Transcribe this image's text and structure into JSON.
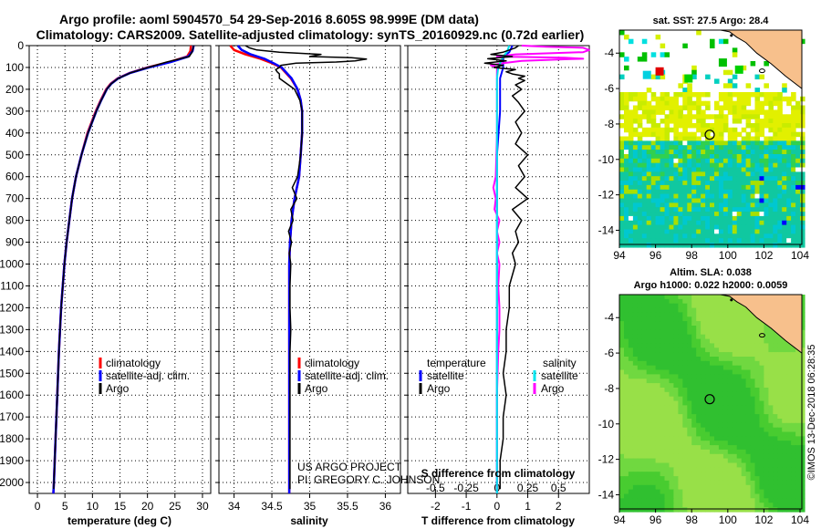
{
  "title": {
    "line1": "Argo profile: aoml 5904570_54 29-Sep-2016 8.605S 98.999E (DM data)",
    "line2": "Climatology: CARS2009. Satellite-adjusted climatology: synTS_20160929.nc (0.72d earlier)"
  },
  "colors": {
    "climatology": "#ff0000",
    "satellite": "#0000ff",
    "argo": "#000000",
    "t_diff_sat": "#0000ff",
    "s_diff_sat": "#00e5ee",
    "s_diff_argo": "#ff00ff",
    "land": "#f7c08c",
    "coast": "#000000"
  },
  "depth_axis": {
    "ylim": [
      2050,
      0
    ],
    "ticks": [
      0,
      100,
      200,
      300,
      400,
      500,
      600,
      700,
      800,
      900,
      1000,
      1100,
      1200,
      1300,
      1400,
      1500,
      1600,
      1700,
      1800,
      1900,
      2000
    ]
  },
  "chart_data": [
    {
      "id": "temperature",
      "type": "line",
      "xlabel": "temperature (deg C)",
      "xlim": [
        -1.5,
        31.5
      ],
      "xticks": [
        0,
        5,
        10,
        15,
        20,
        25,
        30
      ],
      "xtick_labels": [
        "0",
        "5",
        "10",
        "15",
        "20",
        "25",
        "30"
      ],
      "ylabel": "depth",
      "legend": [
        "climatology",
        "satellite-adj. clim.",
        "Argo"
      ],
      "series": [
        {
          "name": "climatology",
          "depth": [
            0,
            25,
            50,
            75,
            100,
            125,
            150,
            175,
            200,
            250,
            300,
            400,
            500,
            600,
            700,
            800,
            900,
            1000,
            1200,
            1400,
            1600,
            1800,
            2000,
            2050
          ],
          "values": [
            27.9,
            27.8,
            27.2,
            24.0,
            20.0,
            16.8,
            14.6,
            13.3,
            12.5,
            11.5,
            10.6,
            9.1,
            8.0,
            7.0,
            6.3,
            5.8,
            5.3,
            4.9,
            4.3,
            3.9,
            3.6,
            3.3,
            3.0,
            2.9
          ]
        },
        {
          "name": "satellite-adj. clim.",
          "depth": [
            0,
            25,
            50,
            75,
            100,
            125,
            150,
            175,
            200,
            250,
            300,
            400,
            500,
            600,
            700,
            800,
            900,
            1000,
            1200,
            1400,
            1600,
            1800,
            2000,
            2050
          ],
          "values": [
            28.4,
            28.2,
            27.4,
            24.2,
            20.2,
            16.9,
            14.7,
            13.4,
            12.6,
            11.6,
            10.7,
            9.2,
            8.0,
            7.0,
            6.3,
            5.8,
            5.3,
            4.9,
            4.3,
            3.9,
            3.6,
            3.3,
            3.0,
            2.9
          ]
        },
        {
          "name": "Argo",
          "depth": [
            0,
            10,
            30,
            50,
            60,
            75,
            100,
            125,
            150,
            175,
            200,
            250,
            300,
            400,
            500,
            600,
            700,
            800,
            900,
            1000,
            1200,
            1400,
            1600,
            1800,
            2000,
            2030
          ],
          "values": [
            28.4,
            28.3,
            28.1,
            27.6,
            26.0,
            23.5,
            20.1,
            16.9,
            14.7,
            13.4,
            12.6,
            11.6,
            10.7,
            9.2,
            8.0,
            7.0,
            6.3,
            5.8,
            5.3,
            4.9,
            4.3,
            3.9,
            3.6,
            3.3,
            3.0,
            2.95
          ]
        }
      ]
    },
    {
      "id": "salinity",
      "type": "line",
      "xlabel": "salinity",
      "xlim": [
        33.8,
        36.2
      ],
      "xticks": [
        34,
        34.5,
        35,
        35.5,
        36
      ],
      "xtick_labels": [
        "34",
        "34.5",
        "35",
        "35.5",
        "36"
      ],
      "legend": [
        "climatology",
        "satellite-adj. clim.",
        "Argo"
      ],
      "series": [
        {
          "name": "climatology",
          "depth": [
            0,
            20,
            40,
            60,
            80,
            100,
            150,
            200,
            250,
            300,
            400,
            500,
            600,
            700,
            800,
            900,
            1000,
            1200,
            1400,
            1600,
            1800,
            2000,
            2050
          ],
          "values": [
            33.95,
            34.0,
            34.15,
            34.35,
            34.5,
            34.62,
            34.75,
            34.84,
            34.88,
            34.9,
            34.9,
            34.88,
            34.86,
            34.8,
            34.76,
            34.74,
            34.73,
            34.73,
            34.73,
            34.73,
            34.73,
            34.73,
            34.73
          ]
        },
        {
          "name": "satellite-adj. clim.",
          "depth": [
            0,
            20,
            40,
            60,
            80,
            100,
            150,
            200,
            250,
            300,
            400,
            500,
            600,
            700,
            800,
            900,
            1000,
            1200,
            1400,
            1600,
            1800,
            2000,
            2050
          ],
          "values": [
            34.05,
            34.1,
            34.22,
            34.4,
            34.52,
            34.63,
            34.76,
            34.84,
            34.88,
            34.9,
            34.9,
            34.88,
            34.86,
            34.8,
            34.76,
            34.74,
            34.73,
            34.73,
            34.73,
            34.73,
            34.73,
            34.73,
            34.73
          ]
        },
        {
          "name": "Argo",
          "depth": [
            0,
            10,
            20,
            30,
            40,
            50,
            55,
            62,
            70,
            75,
            80,
            90,
            100,
            110,
            120,
            130,
            140,
            150,
            175,
            200,
            250,
            300,
            400,
            500,
            600,
            650,
            700,
            750,
            800,
            850,
            900,
            950,
            1000,
            1100,
            1200,
            1300,
            1400,
            1600,
            1800,
            2000,
            2030
          ],
          "values": [
            34.15,
            34.2,
            34.3,
            34.6,
            35.15,
            35.0,
            35.55,
            35.75,
            35.6,
            35.35,
            34.82,
            34.62,
            34.6,
            34.55,
            34.57,
            34.6,
            34.6,
            34.6,
            34.7,
            34.8,
            34.87,
            34.9,
            34.9,
            34.88,
            34.84,
            34.77,
            34.83,
            34.75,
            34.78,
            34.72,
            34.76,
            34.73,
            34.75,
            34.74,
            34.74,
            34.75,
            34.74,
            34.74,
            34.74,
            34.74,
            34.74
          ]
        }
      ]
    },
    {
      "id": "differences",
      "type": "line",
      "xlabel": "T difference from climatology",
      "xlabel_top": "S difference from climatology",
      "xlim": [
        -2.9,
        3.0
      ],
      "xticks": [
        -2,
        -1,
        0,
        1,
        2
      ],
      "xtick_labels": [
        "-2",
        "-1",
        "0",
        "1",
        "2"
      ],
      "top_scale": {
        "xlim": [
          -0.725,
          0.75
        ],
        "ticks": [
          -0.5,
          -0.25,
          0,
          0.25,
          0.5
        ],
        "tick_labels": [
          "-0.5",
          "-0.25",
          "0",
          "0.25",
          "0.5"
        ]
      },
      "legend_left_title": "temperature",
      "legend_right_title": "salinity",
      "legend_left": [
        "satellite",
        "Argo"
      ],
      "legend_right": [
        "satellite",
        "Argo"
      ],
      "series": [
        {
          "name": "T satellite",
          "scale": "T",
          "depth": [
            0,
            30,
            50,
            75,
            100,
            150,
            200,
            300,
            500,
            700,
            1000,
            1500,
            2000,
            2050
          ],
          "values": [
            0.5,
            0.4,
            0.2,
            0.2,
            0.2,
            0.1,
            0.1,
            0.1,
            0.0,
            0.0,
            0.0,
            0.0,
            0.0,
            0.0
          ]
        },
        {
          "name": "T Argo",
          "scale": "T",
          "depth": [
            0,
            10,
            30,
            40,
            50,
            60,
            70,
            80,
            90,
            100,
            110,
            120,
            130,
            140,
            150,
            160,
            180,
            200,
            230,
            260,
            300,
            350,
            400,
            450,
            500,
            550,
            600,
            650,
            700,
            750,
            800,
            850,
            900,
            950,
            1000,
            1100,
            1200,
            1300,
            1400,
            1500,
            1600,
            1700,
            1800,
            1900,
            2000,
            2030
          ],
          "values": [
            0.7,
            0.6,
            0.2,
            -0.2,
            0.5,
            -0.3,
            0.3,
            -0.4,
            0.2,
            -0.1,
            0.6,
            0.3,
            0.5,
            0.9,
            0.7,
            0.9,
            0.6,
            0.8,
            0.5,
            0.7,
            0.9,
            0.6,
            0.8,
            0.6,
            1.0,
            0.7,
            0.9,
            0.6,
            1.0,
            0.5,
            0.8,
            0.6,
            0.7,
            0.5,
            0.6,
            0.4,
            0.4,
            0.3,
            0.3,
            0.2,
            0.3,
            0.2,
            0.2,
            0.1,
            0.1,
            0.1
          ]
        },
        {
          "name": "S satellite",
          "scale": "S",
          "depth": [
            0,
            30,
            50,
            75,
            100,
            150,
            200,
            300,
            500,
            1000,
            1500,
            2000,
            2050
          ],
          "values": [
            0.1,
            0.08,
            0.05,
            0.03,
            0.01,
            0.0,
            0.0,
            0.0,
            0.0,
            0.0,
            0.0,
            0.0,
            0.0
          ]
        },
        {
          "name": "S Argo",
          "scale": "S",
          "depth": [
            0,
            5,
            10,
            20,
            30,
            40,
            50,
            55,
            60,
            62,
            70,
            80,
            90,
            100,
            120,
            150,
            200,
            400,
            600,
            650,
            700,
            750,
            800,
            850,
            900,
            950,
            1000,
            1100,
            1200,
            1300,
            1400,
            1600,
            2000,
            2030
          ],
          "values": [
            0.2,
            0.4,
            0.7,
            0.75,
            0.7,
            0.15,
            0.0,
            0.55,
            0.7,
            0.6,
            0.2,
            0.05,
            -0.05,
            0.0,
            0.0,
            0.0,
            0.0,
            0.0,
            -0.01,
            -0.03,
            -0.01,
            -0.02,
            0.02,
            0.0,
            0.02,
            0.0,
            0.02,
            0.01,
            0.02,
            0.02,
            0.01,
            0.0,
            0.0,
            0.0
          ]
        }
      ]
    },
    {
      "id": "sst_map",
      "type": "heatmap",
      "title": "sat. SST: 27.5 Argo: 28.4",
      "xlim": [
        94,
        104.1
      ],
      "ylim": [
        -14.8,
        -2.7
      ],
      "xticks": [
        94,
        96,
        98,
        100,
        102,
        104
      ],
      "yticks": [
        -4,
        -6,
        -8,
        -10,
        -12,
        -14
      ],
      "argo_position": [
        98.999,
        -8.605
      ]
    },
    {
      "id": "sla_map",
      "type": "heatmap",
      "title_line1": "Altim. SLA: 0.038",
      "title_line2": "Argo h1000: 0.022 h2000: 0.0059",
      "xlim": [
        94,
        104.1
      ],
      "ylim": [
        -14.8,
        -2.7
      ],
      "xticks": [
        94,
        96,
        98,
        100,
        102,
        104
      ],
      "yticks": [
        -4,
        -6,
        -8,
        -10,
        -12,
        -14
      ],
      "argo_position": [
        98.999,
        -8.605
      ]
    }
  ],
  "notes": {
    "project": "US ARGO PROJECT",
    "pi": "PI: GREGORY C. JOHNSON",
    "credit": "©IMOS 13-Dec-2018 06:28:35"
  }
}
